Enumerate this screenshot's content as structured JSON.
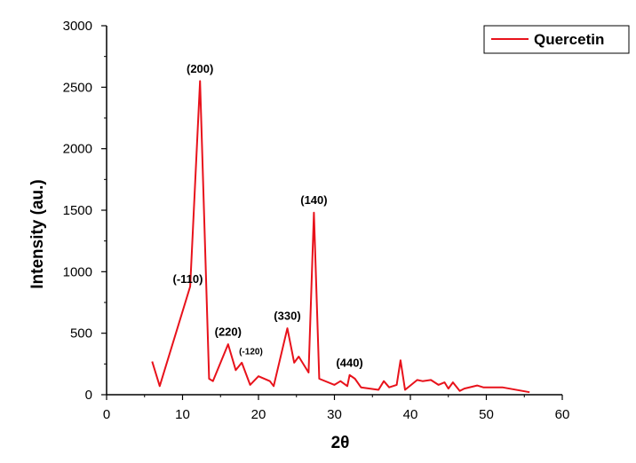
{
  "chart_data": {
    "type": "line",
    "xlabel": "2θ",
    "ylabel": "Intensity (au.)",
    "xlim": [
      0,
      60
    ],
    "ylim": [
      0,
      3000
    ],
    "xticks": [
      "0",
      "10",
      "20",
      "30",
      "40",
      "50",
      "60"
    ],
    "yticks": [
      "0",
      "500",
      "1000",
      "1500",
      "2000",
      "2500",
      "3000"
    ],
    "grid": false,
    "legend_position": "top-right",
    "series": [
      {
        "name": "Quercetin",
        "color": "#e8121b",
        "x": [
          6.0,
          7.0,
          11.0,
          12.3,
          13.5,
          14.0,
          16.0,
          17.0,
          17.8,
          18.9,
          20.0,
          21.5,
          22.0,
          23.8,
          24.7,
          25.3,
          26.6,
          27.3,
          28.0,
          30.0,
          30.8,
          31.7,
          32.0,
          32.7,
          33.5,
          35.8,
          36.5,
          37.2,
          38.2,
          38.7,
          39.3,
          40.9,
          41.6,
          42.7,
          43.7,
          44.5,
          45.0,
          45.6,
          46.5,
          47.1,
          48.8,
          49.6,
          52.1,
          55.7
        ],
        "y": [
          270,
          70,
          880,
          2550,
          130,
          110,
          410,
          200,
          260,
          80,
          150,
          110,
          70,
          540,
          260,
          310,
          180,
          1480,
          130,
          80,
          110,
          70,
          160,
          130,
          60,
          40,
          110,
          60,
          80,
          280,
          40,
          120,
          110,
          120,
          80,
          100,
          50,
          100,
          30,
          50,
          75,
          60,
          60,
          20
        ]
      }
    ],
    "annotations": [
      {
        "text": "(200)",
        "x": 12.3,
        "y": 2590
      },
      {
        "text": "(-110)",
        "x": 10.7,
        "y": 880
      },
      {
        "text": "(220)",
        "x": 16.0,
        "y": 450
      },
      {
        "text": "(-120)",
        "x": 19.0,
        "y": 300,
        "small": true
      },
      {
        "text": "(330)",
        "x": 23.8,
        "y": 580
      },
      {
        "text": "(140)",
        "x": 27.3,
        "y": 1520
      },
      {
        "text": "(440)",
        "x": 32.0,
        "y": 200
      }
    ]
  }
}
